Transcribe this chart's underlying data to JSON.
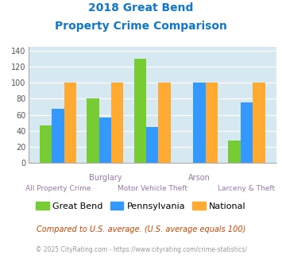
{
  "title_line1": "2018 Great Bend",
  "title_line2": "Property Crime Comparison",
  "great_bend": [
    47,
    80,
    130,
    0,
    28
  ],
  "pennsylvania": [
    68,
    57,
    45,
    100,
    75
  ],
  "national": [
    100,
    100,
    100,
    100,
    100
  ],
  "color_great_bend": "#77cc33",
  "color_pennsylvania": "#3399ff",
  "color_national": "#ffaa33",
  "ylim": [
    0,
    145
  ],
  "yticks": [
    0,
    20,
    40,
    60,
    80,
    100,
    120,
    140
  ],
  "background_color": "#d6e8f0",
  "title_color": "#1177cc",
  "xlabel_color": "#9977aa",
  "legend_labels": [
    "Great Bend",
    "Pennsylvania",
    "National"
  ],
  "footnote1": "Compared to U.S. average. (U.S. average equals 100)",
  "footnote2": "© 2025 CityRating.com - https://www.cityrating.com/crime-statistics/",
  "footnote1_color": "#cc4400",
  "footnote2_color": "#999999",
  "bar_width": 0.26
}
